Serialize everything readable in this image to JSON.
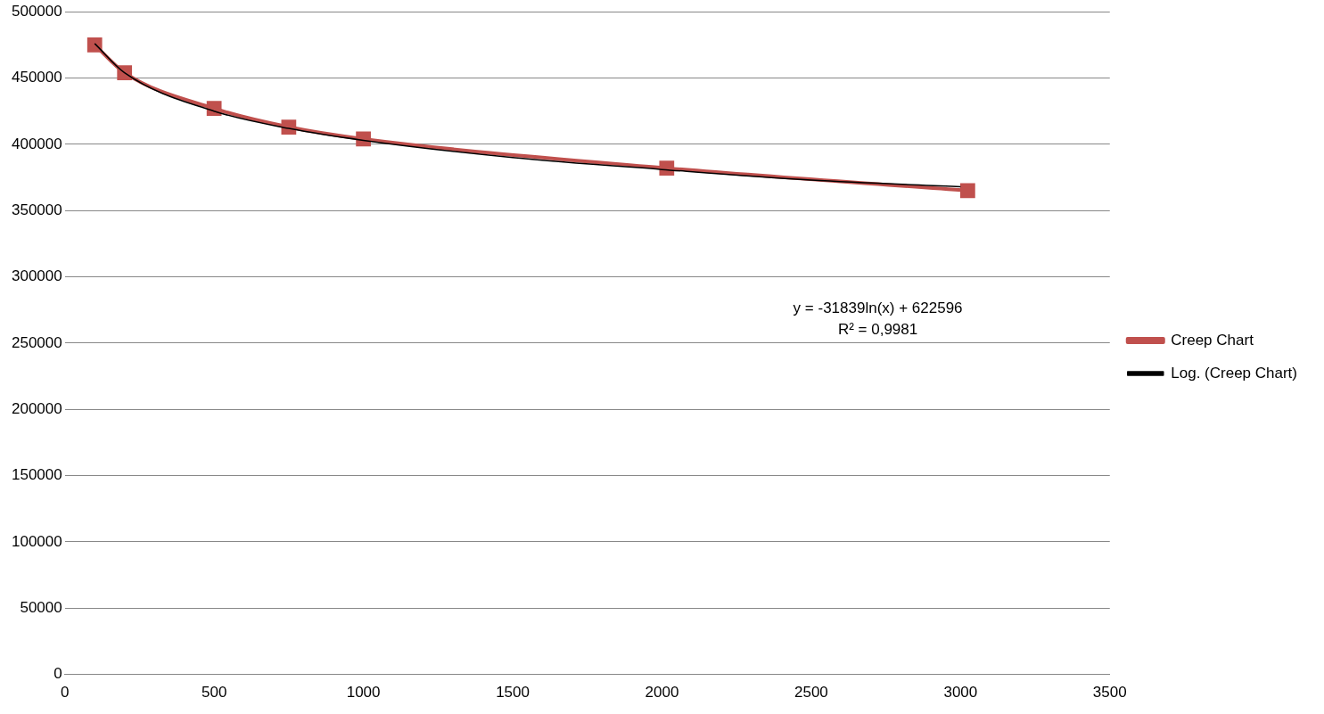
{
  "chart_data": {
    "type": "line",
    "xlim": [
      0,
      3500
    ],
    "xticks": [
      0,
      500,
      1000,
      1500,
      2000,
      2500,
      3000,
      3500
    ],
    "ylim": [
      0,
      500000
    ],
    "yticks": [
      0,
      50000,
      100000,
      150000,
      200000,
      250000,
      300000,
      350000,
      400000,
      450000,
      500000
    ],
    "grid": "y",
    "legend": "right",
    "annotations": [
      "y = -31839ln(x) + 622596",
      "R² = 0,9981"
    ],
    "series": [
      {
        "name": "Creep Chart",
        "color": "#c0504d",
        "marker": "square",
        "x": [
          100,
          200,
          500,
          750,
          1000,
          2016,
          3024
        ],
        "values": [
          475000,
          454000,
          427000,
          413000,
          404000,
          382000,
          365000
        ]
      },
      {
        "name": "Log. (Creep Chart)",
        "color": "#000000",
        "marker": "none",
        "x": [
          100,
          200,
          500,
          750,
          1000,
          1500,
          2000,
          2500,
          3000
        ],
        "values": [
          476000,
          454000,
          425000,
          412000,
          403000,
          390000,
          381000,
          373000,
          368000
        ]
      }
    ]
  }
}
